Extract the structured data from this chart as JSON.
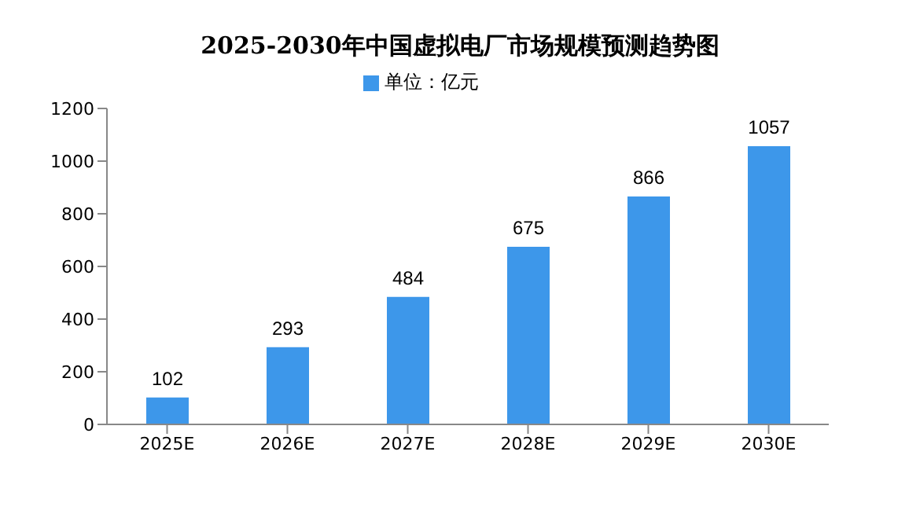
{
  "chart_data": {
    "type": "bar",
    "title": "2025-2030年中国虚拟电厂市场规模预测趋势图",
    "categories": [
      "2025E",
      "2026E",
      "2027E",
      "2028E",
      "2029E",
      "2030E"
    ],
    "series": [
      {
        "name": "单位：亿元",
        "color": "#3d97ea",
        "values": [
          102,
          293,
          484,
          675,
          866,
          1057
        ]
      }
    ],
    "ylim": [
      0,
      1200
    ],
    "yticks": [
      0,
      200,
      400,
      600,
      800,
      1000,
      1200
    ],
    "grid": false,
    "legend": "top",
    "data_labels": true
  }
}
